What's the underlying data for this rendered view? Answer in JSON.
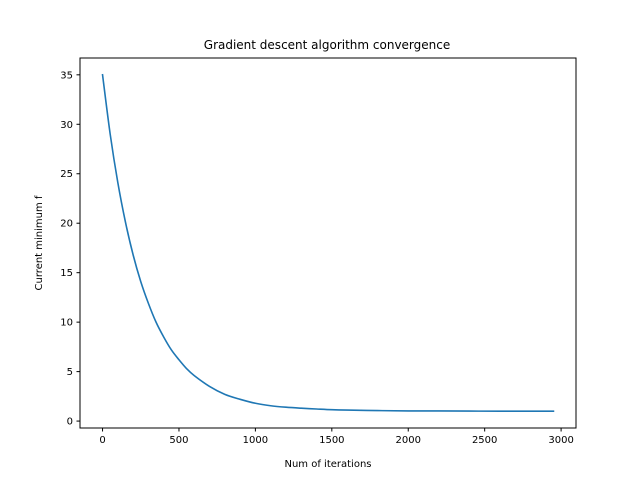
{
  "chart_data": {
    "type": "line",
    "title": "Gradient descent algorithm convergence",
    "xlabel": "Num of iterations",
    "ylabel": "Current minimum f",
    "xlim": [
      -147.5,
      3097.5
    ],
    "ylim": [
      -0.7,
      36.7
    ],
    "xticks": [
      0,
      500,
      1000,
      1500,
      2000,
      2500,
      3000
    ],
    "xtick_labels": [
      "0",
      "500",
      "1000",
      "1500",
      "2000",
      "2500",
      "3000"
    ],
    "yticks": [
      0,
      5,
      10,
      15,
      20,
      25,
      30,
      35
    ],
    "ytick_labels": [
      "0",
      "5",
      "10",
      "15",
      "20",
      "25",
      "30",
      "35"
    ],
    "grid": false,
    "series": [
      {
        "color": "#1f77b4",
        "x": [
          0,
          50,
          100,
          150,
          200,
          250,
          300,
          350,
          400,
          450,
          500,
          550,
          600,
          700,
          800,
          900,
          1000,
          1100,
          1200,
          1300,
          1400,
          1500,
          1600,
          1800,
          2000,
          2200,
          2400,
          2600,
          2800,
          2950
        ],
        "y": [
          35.0,
          29.0,
          24.1,
          20.1,
          16.8,
          14.1,
          11.9,
          10.0,
          8.5,
          7.2,
          6.2,
          5.3,
          4.6,
          3.5,
          2.7,
          2.2,
          1.8,
          1.55,
          1.4,
          1.3,
          1.22,
          1.15,
          1.11,
          1.06,
          1.03,
          1.02,
          1.01,
          1.0,
          1.0,
          1.0
        ]
      }
    ]
  }
}
